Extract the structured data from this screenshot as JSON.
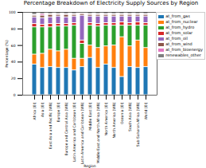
{
  "chart_data": {
    "type": "bar",
    "stacked": true,
    "title": "Percentage Breakdown of Electricity Supply Sources by Region",
    "x_label": "Region",
    "y_label": "Percentage (%)",
    "categories": [
      "Africa (EI)",
      "Asia (EI)",
      "East Asia and Pacific (WB)",
      "Europe (EI)",
      "Europe and Central Asia (WB)",
      "Latin America and Caribbean (EI)",
      "Latin America and Caribbean (WB)",
      "Middle East (EI)",
      "Middle East and North Africa (WB)",
      "North America (EI)",
      "North America (WB)",
      "Oceania (EI)",
      "South Asia (WB)",
      "Sub-Saharan Africa (WB)",
      "World (EI)"
    ],
    "series": [
      {
        "name": "at_from_gas",
        "color": "#1f77b4",
        "values": [
          37,
          33,
          34,
          33,
          33,
          30,
          34,
          45,
          33,
          37,
          33,
          22,
          34,
          33,
          34
        ]
      },
      {
        "name": "at_from_nuclear",
        "color": "#ff7f0e",
        "values": [
          12,
          17,
          21,
          20,
          22,
          14,
          10,
          15,
          24,
          22,
          27,
          48,
          25,
          33,
          23
        ]
      },
      {
        "name": "at_from_hydro",
        "color": "#2ca02c",
        "values": [
          33,
          32,
          27,
          30,
          28,
          40,
          18,
          24,
          26,
          25,
          24,
          14,
          25,
          18,
          27
        ]
      },
      {
        "name": "at_from_solar",
        "color": "#d62728",
        "values": [
          4,
          3,
          4,
          3,
          3,
          3,
          4,
          3,
          3,
          3,
          3,
          4,
          3,
          4,
          3
        ]
      },
      {
        "name": "at_from_oil",
        "color": "#9467bd",
        "values": [
          8,
          8,
          8,
          9,
          8,
          8,
          30,
          8,
          9,
          8,
          8,
          7,
          8,
          7,
          8
        ]
      },
      {
        "name": "at_from_wind",
        "color": "#8c564b",
        "values": [
          2,
          3,
          3,
          2,
          3,
          2,
          2,
          2,
          2,
          2,
          2,
          2,
          2,
          2,
          2
        ]
      },
      {
        "name": "at_from_bioenergy",
        "color": "#e377c2",
        "values": [
          1,
          2,
          1,
          1,
          1,
          1,
          1,
          1,
          1,
          1,
          1,
          1,
          1,
          1,
          1
        ]
      },
      {
        "name": "renewables_other",
        "color": "#7f7f7f",
        "values": [
          3,
          2,
          2,
          2,
          2,
          2,
          1,
          2,
          2,
          2,
          2,
          2,
          2,
          2,
          2
        ]
      }
    ],
    "ylim": [
      0,
      100
    ],
    "yticks": [
      0,
      20,
      40,
      60,
      80,
      100
    ],
    "grid": false,
    "legend": "upper right"
  }
}
